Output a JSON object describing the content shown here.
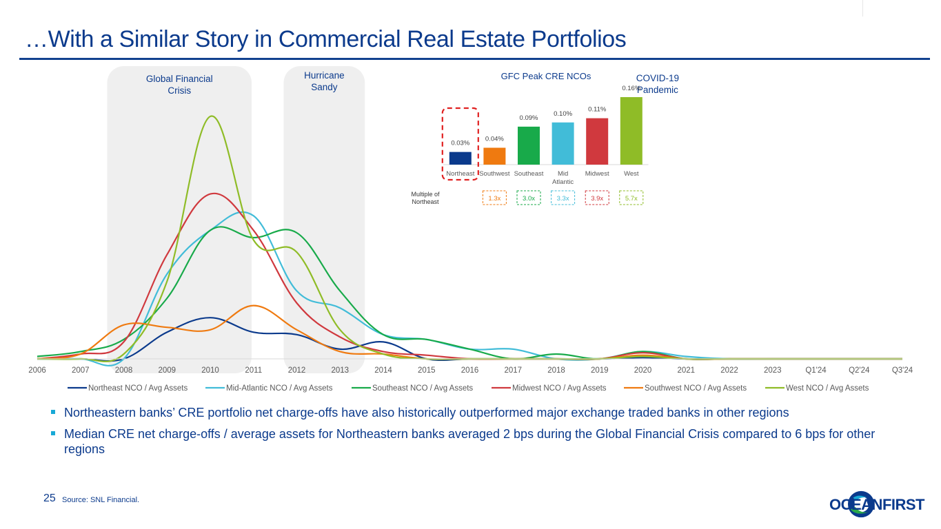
{
  "slide": {
    "title": "…With a Similar Story in Commercial Real Estate Portfolios",
    "page_number": "25",
    "source": "Source: SNL Financial.",
    "logo_text": "OCEANFIRST",
    "bullets": [
      "Northeastern banks’ CRE portfolio net charge-offs have also historically outperformed major exchange traded banks in other regions",
      "Median CRE net charge-offs / average assets for Northeastern banks averaged 2 bps during the Global Financial Crisis compared to 6 bps for other regions"
    ]
  },
  "colors": {
    "title": "#0b3a8c",
    "Northeast": "#0b3a8c",
    "Mid-Atlantic": "#41bcd8",
    "Southeast": "#18aa4a",
    "Midwest": "#d0393e",
    "Southwest": "#ef7a10",
    "West": "#8fbc27",
    "band": "#efefef",
    "bullet": "#18a9d6"
  },
  "chart_data": [
    {
      "type": "line",
      "title": "",
      "x": [
        "2006",
        "2007",
        "2008",
        "2009",
        "2010",
        "2011",
        "2012",
        "2013",
        "2014",
        "2015",
        "2016",
        "2017",
        "2018",
        "2019",
        "2020",
        "2021",
        "2022",
        "2023",
        "Q1'24",
        "Q2'24",
        "Q3'24"
      ],
      "y_axis_shown": false,
      "ylim": [
        0,
        1
      ],
      "grid": false,
      "legend": "bottom",
      "series": [
        {
          "name": "Northeast NCO / Avg Assets",
          "values": [
            0,
            0,
            0,
            0.11,
            0.17,
            0.11,
            0.1,
            0.04,
            0.07,
            0,
            0,
            0,
            0,
            0,
            0.005,
            0,
            0,
            0,
            0,
            0,
            0
          ]
        },
        {
          "name": "Mid-Atlantic NCO / Avg Assets",
          "values": [
            0,
            0,
            0,
            0.35,
            0.53,
            0.59,
            0.28,
            0.21,
            0.1,
            0.08,
            0.04,
            0.04,
            0,
            0,
            0.03,
            0.01,
            0,
            0,
            0,
            0,
            0
          ]
        },
        {
          "name": "Southeast NCO / Avg Assets",
          "values": [
            0.01,
            0.03,
            0.08,
            0.25,
            0.53,
            0.5,
            0.52,
            0.28,
            0.1,
            0.08,
            0.04,
            0,
            0.02,
            0,
            0.03,
            0,
            0,
            0,
            0,
            0,
            0
          ]
        },
        {
          "name": "Midwest NCO / Avg Assets",
          "values": [
            0,
            0.02,
            0.07,
            0.43,
            0.68,
            0.53,
            0.23,
            0.09,
            0.03,
            0.015,
            0,
            0,
            0,
            0,
            0.025,
            0,
            0,
            0,
            0,
            0,
            0
          ]
        },
        {
          "name": "Southwest NCO / Avg Assets",
          "values": [
            0,
            0.02,
            0.14,
            0.13,
            0.12,
            0.22,
            0.12,
            0.03,
            0.02,
            0,
            0,
            0,
            0,
            0,
            0.015,
            0,
            0,
            0,
            0,
            0,
            0
          ]
        },
        {
          "name": "West NCO / Avg Assets",
          "values": [
            0,
            0,
            0.02,
            0.32,
            1.0,
            0.49,
            0.44,
            0.12,
            0.02,
            0,
            0,
            0,
            0,
            0,
            0.01,
            0,
            0,
            0,
            0,
            0,
            0
          ]
        }
      ],
      "annotations": [
        {
          "label": "Global Financial Crisis",
          "from": "2008",
          "to": "2010"
        },
        {
          "label": "Hurricane Sandy",
          "from": "2012",
          "to": "2013"
        },
        {
          "label": "COVID-19 Pandemic",
          "from": "2020",
          "to": "2021"
        }
      ]
    },
    {
      "type": "bar",
      "title": "GFC Peak CRE NCOs",
      "categories": [
        "Northeast",
        "Southwest",
        "Southeast",
        "Mid Atlantic",
        "Midwest",
        "West"
      ],
      "values": [
        0.03,
        0.04,
        0.09,
        0.1,
        0.11,
        0.16
      ],
      "data_labels": [
        "0.03%",
        "0.04%",
        "0.09%",
        "0.10%",
        "0.11%",
        "0.16%"
      ],
      "multiple_label": "Multiple of Northeast",
      "multiples": [
        "",
        "1.3x",
        "3.0x",
        "3.3x",
        "3.9x",
        "5.7x"
      ],
      "highlight": "Northeast"
    }
  ]
}
